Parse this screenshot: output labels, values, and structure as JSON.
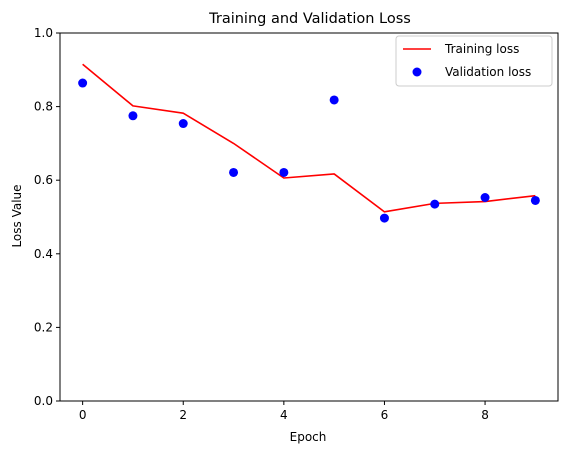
{
  "chart_data": {
    "type": "line",
    "title": "Training and Validation Loss",
    "xlabel": "Epoch",
    "ylabel": "Loss Value",
    "xlim": [
      -0.45,
      9.45
    ],
    "ylim": [
      0.0,
      1.0
    ],
    "xticks": [
      0,
      2,
      4,
      6,
      8
    ],
    "yticks": [
      0.0,
      0.2,
      0.4,
      0.6,
      0.8,
      1.0
    ],
    "xtick_labels": [
      "0",
      "2",
      "4",
      "6",
      "8"
    ],
    "ytick_labels": [
      "0.0",
      "0.2",
      "0.4",
      "0.6",
      "0.8",
      "1.0"
    ],
    "grid": false,
    "legend_position": "top-right",
    "x": [
      0,
      1,
      2,
      3,
      4,
      5,
      6,
      7,
      8,
      9
    ],
    "series": [
      {
        "name": "Training loss",
        "style": "line",
        "color": "#ff0000",
        "values": [
          0.915,
          0.802,
          0.782,
          0.7,
          0.606,
          0.617,
          0.514,
          0.537,
          0.542,
          0.558
        ]
      },
      {
        "name": "Validation loss",
        "style": "scatter",
        "color": "#0000ff",
        "values": [
          0.864,
          0.775,
          0.754,
          0.621,
          0.621,
          0.818,
          0.497,
          0.535,
          0.553,
          0.545
        ]
      }
    ]
  }
}
